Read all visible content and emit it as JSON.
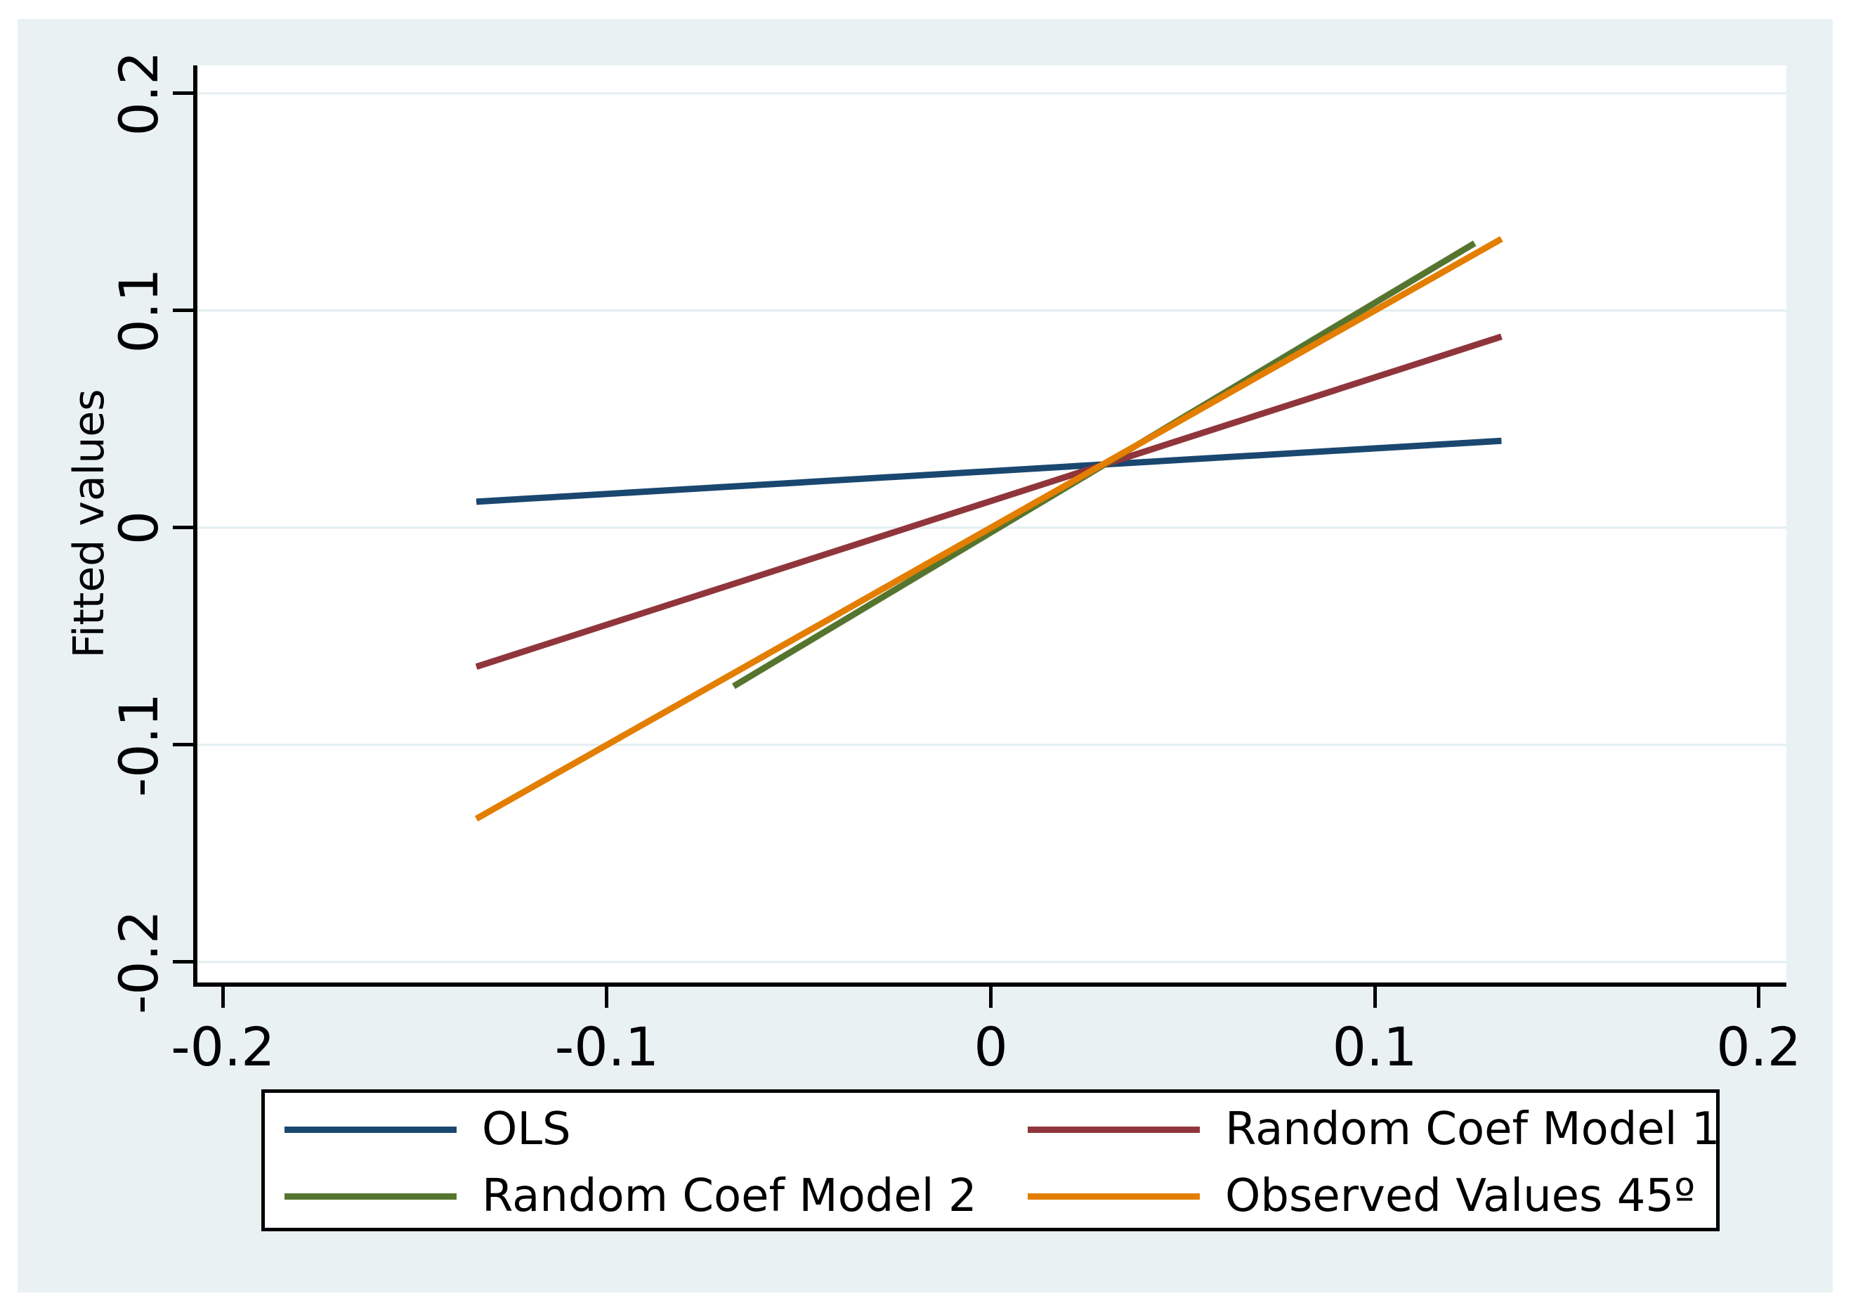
{
  "figure": {
    "background_color": "#e9f1f3",
    "plot_background_color": "#ffffff",
    "axis_color": "#000000",
    "grid_color": "#e2eef0"
  },
  "chart_data": {
    "type": "line",
    "title": "",
    "xlabel": "",
    "ylabel": "Fitted values",
    "xlim": [
      -0.2072,
      0.2072
    ],
    "ylim": [
      -0.2094,
      0.2129
    ],
    "x_ticks": [
      -0.2,
      -0.1,
      0,
      0.1,
      0.2
    ],
    "y_ticks": [
      0.2,
      0.1,
      0,
      -0.1,
      -0.2
    ],
    "x_tick_labels": [
      "-0.2",
      "-0.1",
      "0",
      "0.1",
      "0.2"
    ],
    "y_tick_labels": [
      "0.2",
      "0.1",
      "0",
      "-0.1",
      "-0.2"
    ],
    "grid": true,
    "grid_axis": "y",
    "legend_position": "bottom",
    "legend_columns": 2,
    "series": [
      {
        "name": "OLS",
        "color": "#1a476f",
        "points": [
          [
            -0.134,
            0.012
          ],
          [
            0.133,
            0.04
          ]
        ]
      },
      {
        "name": "Random Coef Model 1",
        "color": "#90353b",
        "points": [
          [
            -0.134,
            -0.064
          ],
          [
            0.133,
            0.088
          ]
        ]
      },
      {
        "name": "Random Coef Model 2",
        "color": "#55752f",
        "points": [
          [
            -0.067,
            -0.073
          ],
          [
            0.126,
            0.131
          ]
        ]
      },
      {
        "name": "Observed Values 45º",
        "color": "#e37e00",
        "points": [
          [
            -0.134,
            -0.134
          ],
          [
            0.133,
            0.133
          ]
        ]
      }
    ]
  }
}
